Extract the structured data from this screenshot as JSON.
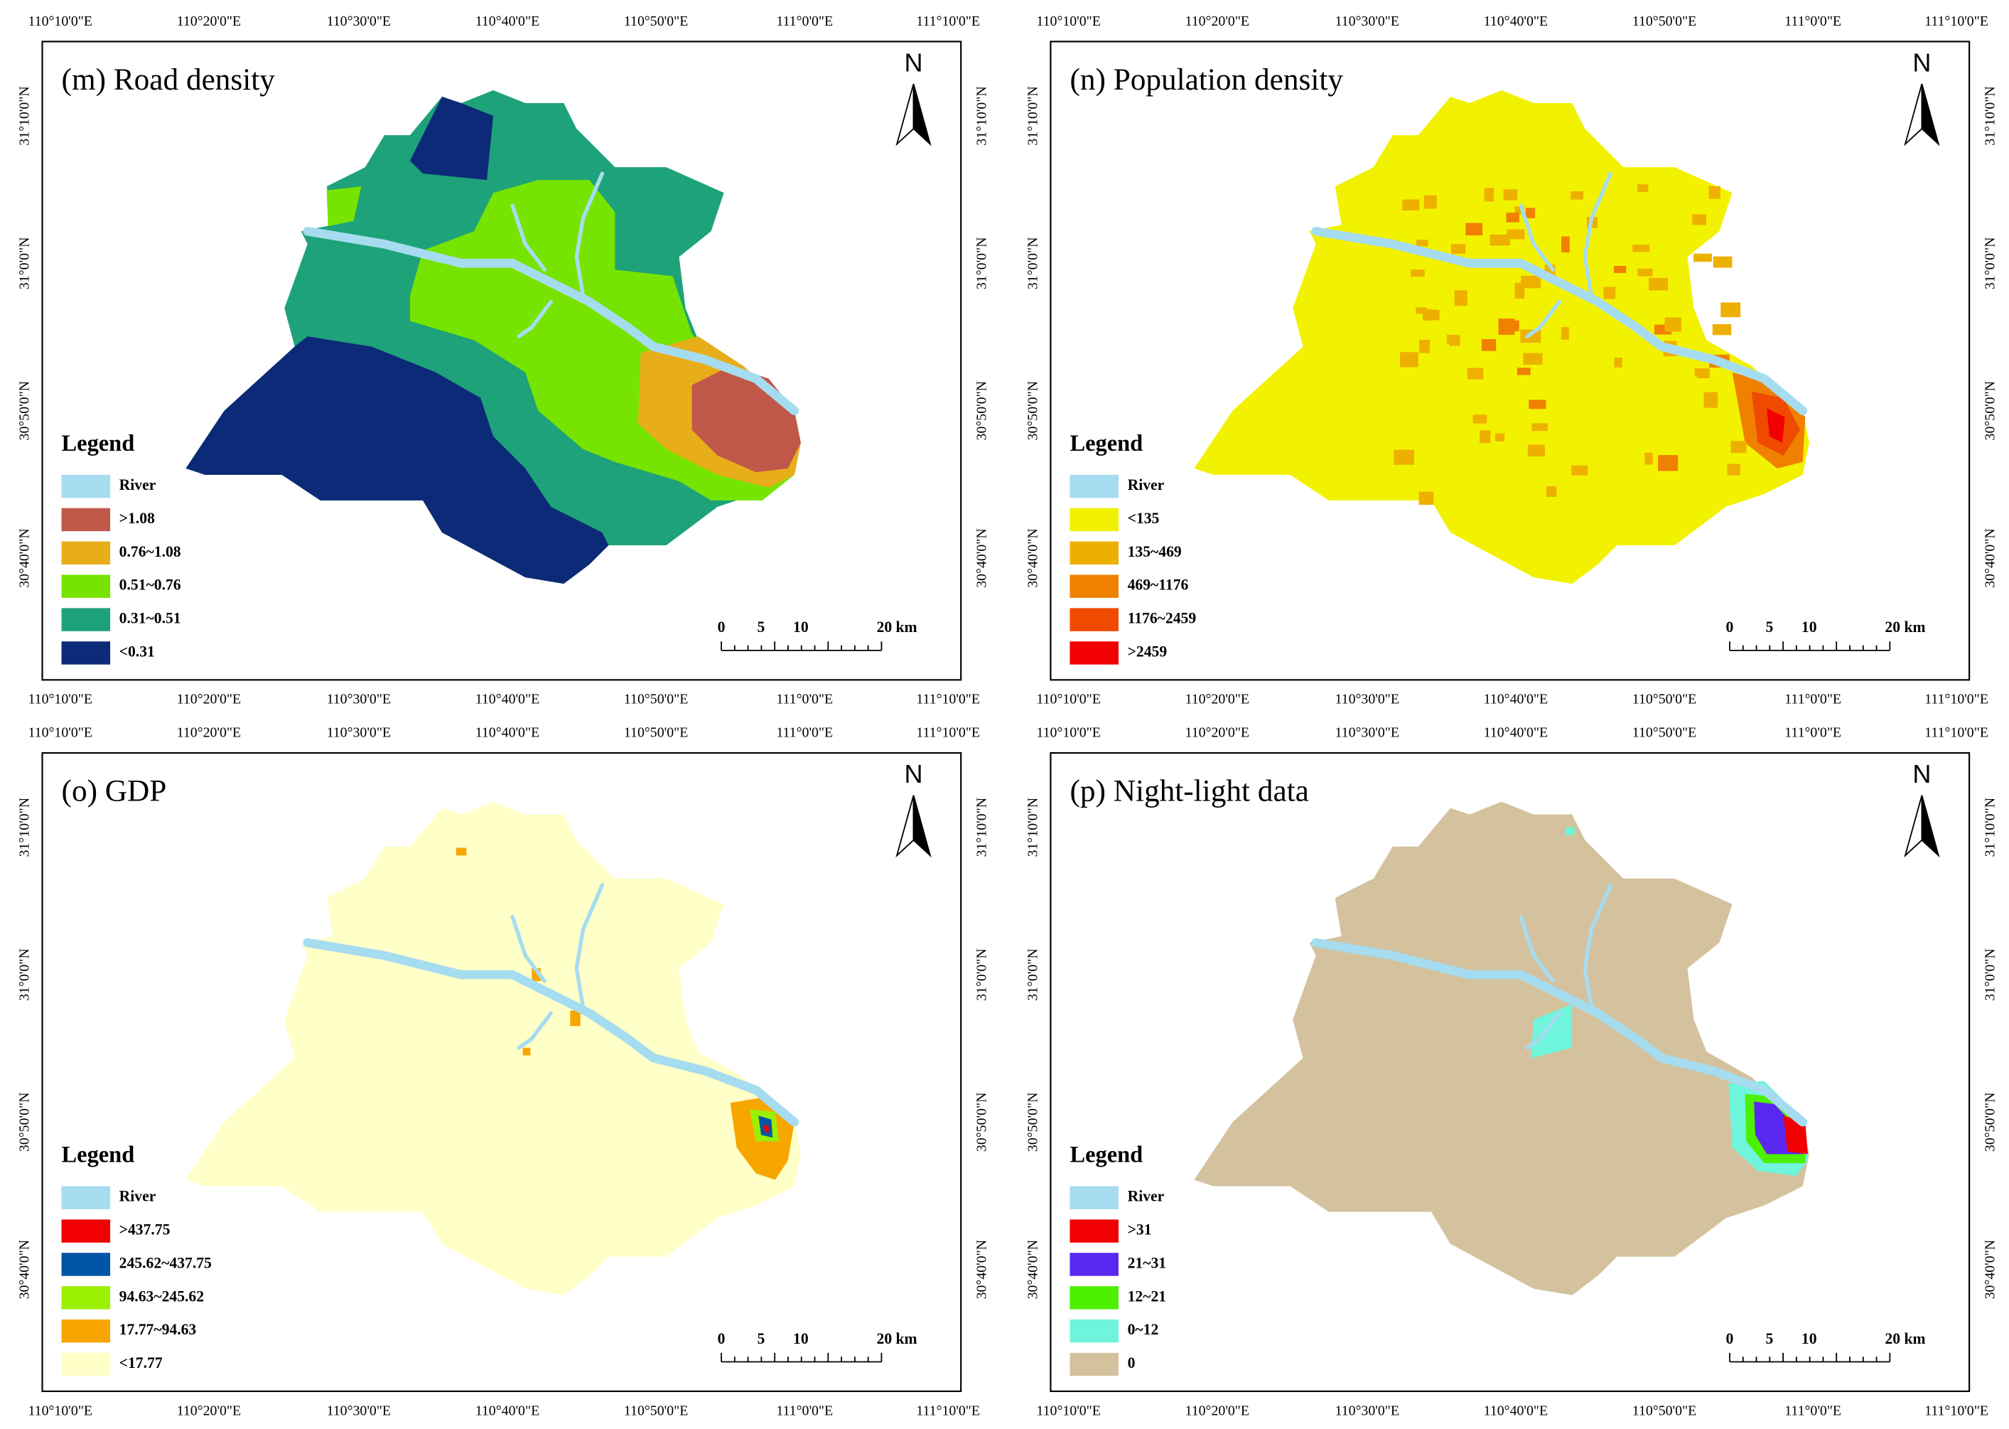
{
  "lon_labels": [
    "110°10'0\"E",
    "110°20'0\"E",
    "110°30'0\"E",
    "110°40'0\"E",
    "110°50'0\"E",
    "111°0'0\"E",
    "111°10'0\"E"
  ],
  "lat_labels": [
    "31°10'0\"N",
    "31°0'0\"N",
    "30°50'0\"N",
    "30°40'0\"N"
  ],
  "north": "N",
  "legend_title": "Legend",
  "scale_labels": [
    "0",
    "5",
    "10",
    "20 km"
  ],
  "panels": [
    {
      "title": "(m) Road density",
      "legend": [
        {
          "label": "River",
          "color": "#a6dcef"
        },
        {
          "label": ">1.08",
          "color": "#c0584a"
        },
        {
          "label": "0.76~1.08",
          "color": "#e8ae1a"
        },
        {
          "label": "0.51~0.76",
          "color": "#76e400"
        },
        {
          "label": "0.31~0.51",
          "color": "#1ea27a"
        },
        {
          "label": "<0.31",
          "color": "#0d2a78"
        }
      ]
    },
    {
      "title": "(n) Population density",
      "legend": [
        {
          "label": "River",
          "color": "#a6dcef"
        },
        {
          "label": "<135",
          "color": "#f2f200"
        },
        {
          "label": "135~469",
          "color": "#eeb000"
        },
        {
          "label": "469~1176",
          "color": "#f08000"
        },
        {
          "label": "1176~2459",
          "color": "#f04a00"
        },
        {
          "label": ">2459",
          "color": "#f00000"
        }
      ]
    },
    {
      "title": "(o) GDP",
      "legend": [
        {
          "label": "River",
          "color": "#a6dcef"
        },
        {
          "label": ">437.75",
          "color": "#f00000"
        },
        {
          "label": "245.62~437.75",
          "color": "#0055a8"
        },
        {
          "label": "94.63~245.62",
          "color": "#9af000"
        },
        {
          "label": "17.77~94.63",
          "color": "#f7a600"
        },
        {
          "label": "<17.77",
          "color": "#ffffc8"
        }
      ]
    },
    {
      "title": "(p) Night-light data",
      "legend": [
        {
          "label": "River",
          "color": "#a6dcef"
        },
        {
          "label": ">31",
          "color": "#f00000"
        },
        {
          "label": "21~31",
          "color": "#5a28f0"
        },
        {
          "label": "12~21",
          "color": "#4cf000"
        },
        {
          "label": "0~12",
          "color": "#6ff5dc"
        },
        {
          "label": "0",
          "color": "#d4c29e"
        }
      ]
    }
  ]
}
